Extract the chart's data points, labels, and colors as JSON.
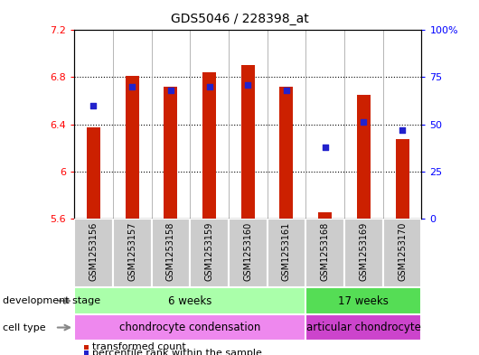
{
  "title": "GDS5046 / 228398_at",
  "samples": [
    "GSM1253156",
    "GSM1253157",
    "GSM1253158",
    "GSM1253159",
    "GSM1253160",
    "GSM1253161",
    "GSM1253168",
    "GSM1253169",
    "GSM1253170"
  ],
  "bar_values": [
    6.37,
    6.81,
    6.72,
    6.84,
    6.9,
    6.72,
    5.65,
    6.65,
    6.27
  ],
  "percentile_values": [
    60,
    70,
    68,
    70,
    71,
    68,
    38,
    51,
    47
  ],
  "ylim_left": [
    5.6,
    7.2
  ],
  "ylim_right": [
    0,
    100
  ],
  "yticks_left": [
    5.6,
    6.0,
    6.4,
    6.8,
    7.2
  ],
  "ytick_labels_left": [
    "5.6",
    "6",
    "6.4",
    "6.8",
    "7.2"
  ],
  "ytick_labels_right": [
    "0",
    "25",
    "50",
    "75",
    "100%"
  ],
  "yticks_right": [
    0,
    25,
    50,
    75,
    100
  ],
  "bar_color": "#cc2000",
  "scatter_color": "#2222cc",
  "bar_bottom": 5.6,
  "bar_width": 0.35,
  "groups": [
    {
      "label": "6 weeks",
      "start": 0,
      "end": 6,
      "color": "#aaffaa"
    },
    {
      "label": "17 weeks",
      "start": 6,
      "end": 9,
      "color": "#55dd55"
    }
  ],
  "cell_types": [
    {
      "label": "chondrocyte condensation",
      "start": 0,
      "end": 6,
      "color": "#ee88ee"
    },
    {
      "label": "articular chondrocyte",
      "start": 6,
      "end": 9,
      "color": "#cc44cc"
    }
  ],
  "dev_stage_label": "development stage",
  "cell_type_label": "cell type",
  "legend_bar_label": "transformed count",
  "legend_scatter_label": "percentile rank within the sample"
}
